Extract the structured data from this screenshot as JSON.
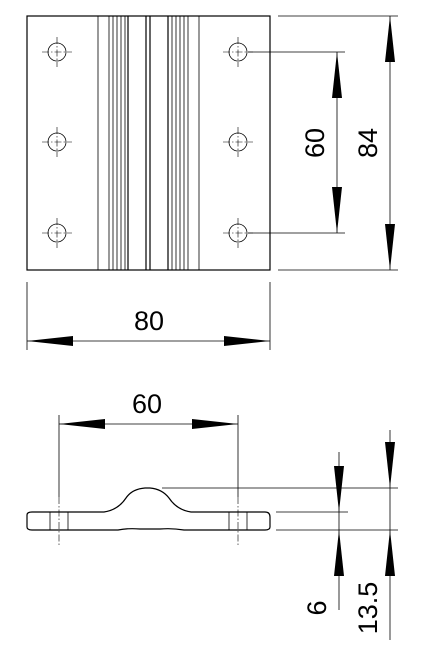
{
  "drawing": {
    "type": "technical-drawing",
    "views": [
      "top-view",
      "side-view"
    ],
    "line_color": "#000000",
    "background": "#ffffff"
  },
  "dimensions": {
    "top_width": "80",
    "top_hole_spacing": "60",
    "top_height": "84",
    "side_hole_spacing": "60",
    "side_thickness": "6",
    "side_total_height": "13.5"
  }
}
